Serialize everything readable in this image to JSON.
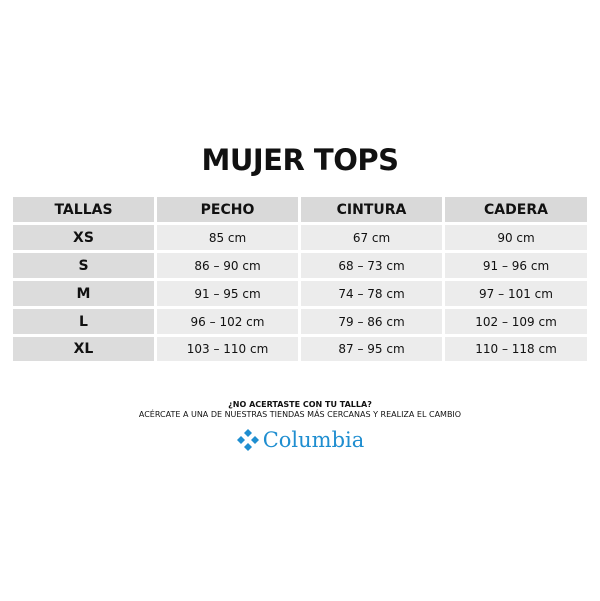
{
  "title": "MUJER TOPS",
  "headers": [
    "TALLAS",
    "PECHO",
    "CINTURA",
    "CADERA"
  ],
  "rows": [
    [
      "XS",
      "85 cm",
      "67 cm",
      "90 cm"
    ],
    [
      "S",
      "86 – 90 cm",
      "68 – 73 cm",
      "91 – 96 cm"
    ],
    [
      "M",
      "91 – 95 cm",
      "74 – 78 cm",
      "97 – 101 cm"
    ],
    [
      "L",
      "96 – 102 cm",
      "79 – 86 cm",
      "102 – 109 cm"
    ],
    [
      "XL",
      "103 – 110 cm",
      "87 – 95 cm",
      "110 – 118 cm"
    ]
  ],
  "footer": {
    "question": "¿NO ACERTASTE CON TU TALLA?",
    "instruction": "ACÉRCATE A UNA DE NUESTRAS TIENDAS MÁS CERCANAS Y REALIZA EL CAMBIO"
  },
  "brand": {
    "name": "Columbia",
    "color": "#1f8ed0"
  }
}
